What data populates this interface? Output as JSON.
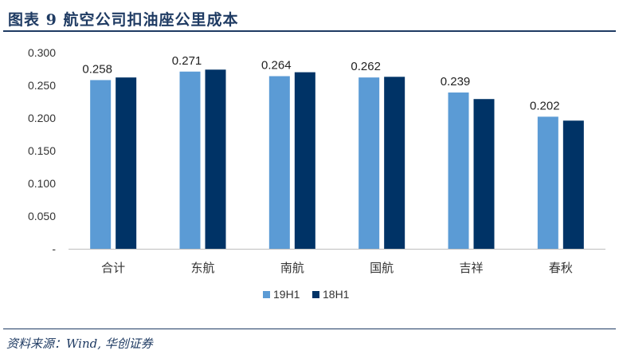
{
  "header": {
    "title": "图表 9   航空公司扣油座公里成本"
  },
  "footer": {
    "source": "资料来源：Wind, 华创证券"
  },
  "colors": {
    "series_19h1": "#5b9bd5",
    "series_18h1": "#003366",
    "title": "#1f3b63"
  },
  "chart_data": {
    "type": "bar",
    "categories": [
      "合计",
      "东航",
      "南航",
      "国航",
      "吉祥",
      "春秋"
    ],
    "series": [
      {
        "name": "19H1",
        "values": [
          0.258,
          0.271,
          0.264,
          0.262,
          0.239,
          0.202
        ]
      },
      {
        "name": "18H1",
        "values": [
          0.262,
          0.274,
          0.27,
          0.263,
          0.229,
          0.196
        ]
      }
    ],
    "data_labels": [
      "0.258",
      "0.271",
      "0.264",
      "0.262",
      "0.239",
      "0.202"
    ],
    "y_ticks": [
      {
        "value": 0,
        "label": "-"
      },
      {
        "value": 0.05,
        "label": "0.050"
      },
      {
        "value": 0.1,
        "label": "0.100"
      },
      {
        "value": 0.15,
        "label": "0.150"
      },
      {
        "value": 0.2,
        "label": "0.200"
      },
      {
        "value": 0.25,
        "label": "0.250"
      },
      {
        "value": 0.3,
        "label": "0.300"
      }
    ],
    "ylim": [
      0,
      0.3
    ],
    "grid": false,
    "legend": "bottom"
  }
}
